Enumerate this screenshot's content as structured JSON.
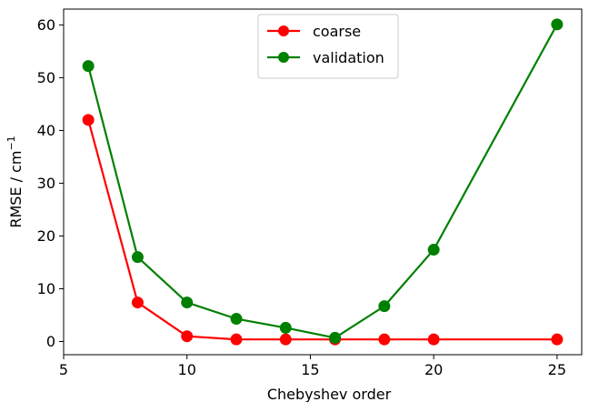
{
  "chart_data": {
    "type": "line",
    "title": "",
    "xlabel": "Chebyshev order",
    "ylabel": "RMSE / cm",
    "ylabel_sup": "−1",
    "xlim": [
      5,
      26
    ],
    "ylim": [
      -2.5,
      63
    ],
    "xticks": [
      5,
      10,
      15,
      20,
      25
    ],
    "yticks": [
      0,
      10,
      20,
      30,
      40,
      50,
      60
    ],
    "grid": false,
    "legend_position": "upper center",
    "series": [
      {
        "name": "coarse",
        "color": "#ff0000",
        "x": [
          6,
          8,
          10,
          12,
          14,
          16,
          18,
          20,
          25
        ],
        "y": [
          42.0,
          7.4,
          1.0,
          0.4,
          0.4,
          0.4,
          0.4,
          0.4,
          0.4
        ]
      },
      {
        "name": "validation",
        "color": "#008000",
        "x": [
          6,
          8,
          10,
          12,
          14,
          16,
          18,
          20,
          25
        ],
        "y": [
          52.2,
          16.0,
          7.4,
          4.3,
          2.6,
          0.7,
          6.7,
          17.4,
          60.1
        ]
      }
    ]
  }
}
